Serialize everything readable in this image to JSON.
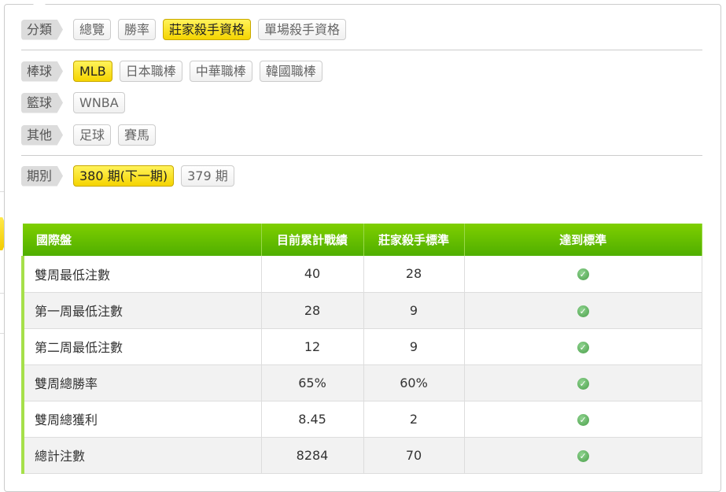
{
  "filters": [
    {
      "label": "分類",
      "options": [
        "總覽",
        "勝率",
        "莊家殺手資格",
        "單場殺手資格"
      ],
      "selected": 2
    },
    {
      "label": "棒球",
      "options": [
        "MLB",
        "日本職棒",
        "中華職棒",
        "韓國職棒"
      ],
      "selected": 0
    },
    {
      "label": "籃球",
      "options": [
        "WNBA"
      ],
      "selected": -1
    },
    {
      "label": "其他",
      "options": [
        "足球",
        "賽馬"
      ],
      "selected": -1
    },
    {
      "label": "期別",
      "options": [
        "380 期(下一期)",
        "379 期"
      ],
      "selected": 0
    }
  ],
  "table": {
    "headers": [
      "國際盤",
      "目前累計戰績",
      "莊家殺手標準",
      "達到標準"
    ],
    "rows": [
      {
        "name": "雙周最低注數",
        "current": "40",
        "standard": "28",
        "met": true
      },
      {
        "name": "第一周最低注數",
        "current": "28",
        "standard": "9",
        "met": true
      },
      {
        "name": "第二周最低注數",
        "current": "12",
        "standard": "9",
        "met": true
      },
      {
        "name": "雙周總勝率",
        "current": "65%",
        "standard": "60%",
        "met": true
      },
      {
        "name": "雙周總獲利",
        "current": "8.45",
        "standard": "2",
        "met": true
      },
      {
        "name": "總計注數",
        "current": "8284",
        "standard": "70",
        "met": true
      }
    ],
    "check_icon": "check-circle-icon"
  },
  "colors": {
    "accent_yellow": "#f5d400",
    "header_green": "#5ab400",
    "check_green": "#5aaa5a"
  }
}
